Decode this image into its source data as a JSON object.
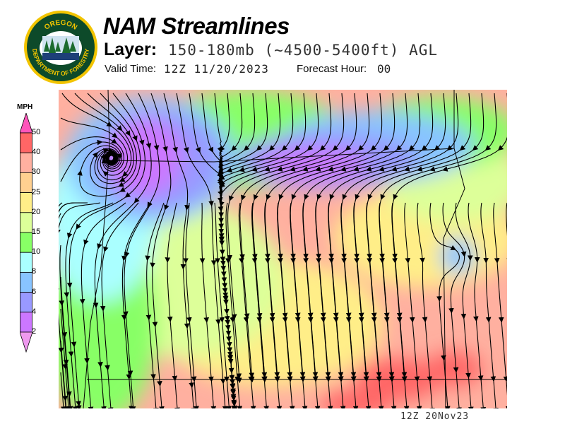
{
  "header": {
    "title": "NAM Streamlines",
    "layer_label": "Layer:",
    "layer_value": "150-180mb (~4500-5400ft) AGL",
    "valid_time_label": "Valid Time:",
    "valid_time_value": "12Z 11/20/2023",
    "forecast_hour_label": "Forecast Hour:",
    "forecast_hour_value": "00"
  },
  "logo": {
    "text_top": "OREGON",
    "text_bottom": "DEPARTMENT OF FORESTRY",
    "ring_color": "#f2c400",
    "field_color": "#0d4a2a"
  },
  "colorbar": {
    "units": "MPH",
    "labels": [
      "50",
      "40",
      "30",
      "25",
      "20",
      "15",
      "10",
      "8",
      "6",
      "4",
      "2"
    ],
    "colors": [
      "#ff6666",
      "#ffb0a0",
      "#ffd090",
      "#ffee88",
      "#ddff99",
      "#88ff66",
      "#aaffff",
      "#88c4ff",
      "#9999ff",
      "#cc77ff"
    ],
    "over_color": "#ff55bb",
    "under_color": "#ee99ee"
  },
  "map": {
    "timestamp": "12Z 20Nov23"
  }
}
